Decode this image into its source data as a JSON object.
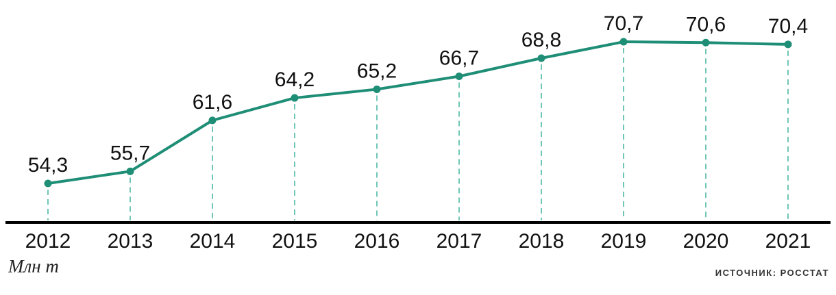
{
  "chart_data": {
    "type": "line",
    "title": "",
    "xlabel": "",
    "ylabel": "Млн т",
    "categories": [
      "2012",
      "2013",
      "2014",
      "2015",
      "2016",
      "2017",
      "2018",
      "2019",
      "2020",
      "2021"
    ],
    "values": [
      54.3,
      55.7,
      61.6,
      64.2,
      65.2,
      66.7,
      68.8,
      70.7,
      70.6,
      70.4
    ],
    "value_labels": [
      "54,3",
      "55,7",
      "61,6",
      "64,2",
      "65,2",
      "66,7",
      "68,8",
      "70,7",
      "70,6",
      "70,4"
    ],
    "unit_label": "Млн т",
    "source_label": "ИСТОЧНИК: РОССТАТ",
    "series_color": "#1f8e76",
    "drop_line_color": "#6fc6b6",
    "axis_color": "#000000",
    "label_color": "#111111",
    "ylim": [
      50,
      75
    ],
    "legend": "none",
    "grid": "vertical-dashed-drop-lines"
  }
}
